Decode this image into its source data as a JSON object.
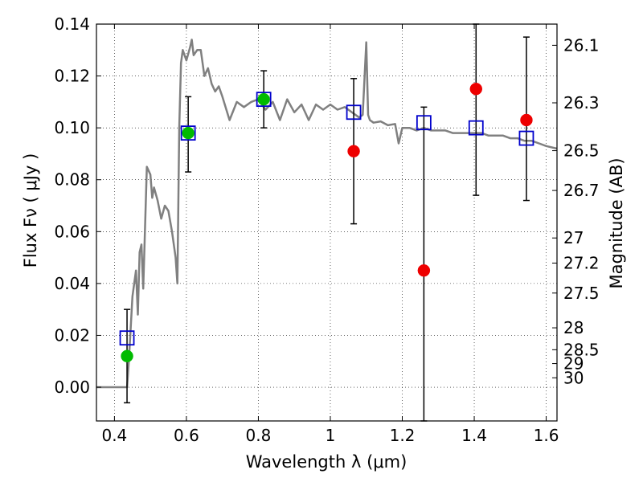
{
  "chart_data": {
    "type": "scatter",
    "xlabel": "Wavelength  λ (μm)",
    "ylabel": "Flux  Fν  ( μJy )",
    "ylabel_right": "Magnitude (AB)",
    "xlim": [
      0.35,
      1.63
    ],
    "ylim": [
      -0.013,
      0.14
    ],
    "x_ticks": [
      0.4,
      0.6,
      0.8,
      1.0,
      1.2,
      1.4,
      1.6
    ],
    "x_tick_labels": [
      "0.4",
      "0.6",
      "0.8",
      "1",
      "1.2",
      "1.4",
      "1.6"
    ],
    "y_ticks": [
      0.0,
      0.02,
      0.04,
      0.06,
      0.08,
      0.1,
      0.12,
      0.14
    ],
    "y_tick_labels": [
      "0.00",
      "0.02",
      "0.04",
      "0.06",
      "0.08",
      "0.10",
      "0.12",
      "0.14"
    ],
    "mag_ticks": [
      "26.1",
      "26.3",
      "26.5",
      "26.7",
      "27",
      "27.2",
      "27.5",
      "28",
      "28.5",
      "29",
      "30"
    ],
    "grid": true,
    "colors": {
      "model": "#808080",
      "observed_detected": "#00bb00",
      "observed_undetected": "#ee0000",
      "model_box": "#0000cc",
      "errorbar": "#000000"
    },
    "series": [
      {
        "name": "model spectrum",
        "kind": "line",
        "x": [
          0.35,
          0.42,
          0.43,
          0.435,
          0.44,
          0.45,
          0.46,
          0.465,
          0.47,
          0.475,
          0.48,
          0.49,
          0.5,
          0.505,
          0.51,
          0.52,
          0.53,
          0.54,
          0.55,
          0.56,
          0.57,
          0.575,
          0.58,
          0.585,
          0.59,
          0.6,
          0.61,
          0.615,
          0.62,
          0.63,
          0.64,
          0.65,
          0.66,
          0.67,
          0.68,
          0.69,
          0.7,
          0.72,
          0.74,
          0.76,
          0.78,
          0.8,
          0.82,
          0.84,
          0.86,
          0.88,
          0.9,
          0.92,
          0.94,
          0.96,
          0.98,
          1.0,
          1.02,
          1.04,
          1.06,
          1.08,
          1.09,
          1.1,
          1.105,
          1.11,
          1.12,
          1.14,
          1.16,
          1.18,
          1.19,
          1.2,
          1.22,
          1.24,
          1.26,
          1.28,
          1.3,
          1.32,
          1.34,
          1.36,
          1.38,
          1.4,
          1.42,
          1.44,
          1.46,
          1.48,
          1.5,
          1.52,
          1.54,
          1.56,
          1.58,
          1.6,
          1.63
        ],
        "y": [
          0.0,
          0.0,
          0.0,
          0.0,
          0.01,
          0.035,
          0.045,
          0.028,
          0.052,
          0.055,
          0.038,
          0.085,
          0.082,
          0.073,
          0.077,
          0.072,
          0.065,
          0.07,
          0.068,
          0.06,
          0.05,
          0.04,
          0.1,
          0.125,
          0.13,
          0.126,
          0.131,
          0.134,
          0.128,
          0.13,
          0.13,
          0.12,
          0.123,
          0.117,
          0.114,
          0.116,
          0.112,
          0.103,
          0.11,
          0.108,
          0.11,
          0.111,
          0.107,
          0.11,
          0.103,
          0.111,
          0.106,
          0.109,
          0.103,
          0.109,
          0.107,
          0.109,
          0.107,
          0.108,
          0.106,
          0.104,
          0.105,
          0.133,
          0.105,
          0.103,
          0.102,
          0.1025,
          0.101,
          0.1015,
          0.094,
          0.1,
          0.1,
          0.099,
          0.1,
          0.099,
          0.099,
          0.099,
          0.098,
          0.098,
          0.098,
          0.098,
          0.098,
          0.097,
          0.097,
          0.097,
          0.096,
          0.096,
          0.095,
          0.095,
          0.094,
          0.093,
          0.092
        ]
      },
      {
        "name": "model photometry",
        "kind": "square",
        "x": [
          0.435,
          0.605,
          0.815,
          1.065,
          1.26,
          1.405,
          1.545
        ],
        "y": [
          0.019,
          0.098,
          0.111,
          0.106,
          0.102,
          0.1,
          0.096
        ]
      },
      {
        "name": "observed photometry",
        "kind": "point",
        "x": [
          0.435,
          0.605,
          0.815,
          1.065,
          1.26,
          1.405,
          1.545
        ],
        "y": [
          0.012,
          0.098,
          0.111,
          0.091,
          0.045,
          0.115,
          0.103
        ],
        "err_low": [
          -0.006,
          0.083,
          0.1,
          0.063,
          -0.013,
          0.074,
          0.072
        ],
        "err_high": [
          0.03,
          0.112,
          0.122,
          0.119,
          0.108,
          0.14,
          0.135
        ],
        "detected": [
          true,
          true,
          true,
          false,
          false,
          false,
          false
        ]
      }
    ]
  }
}
